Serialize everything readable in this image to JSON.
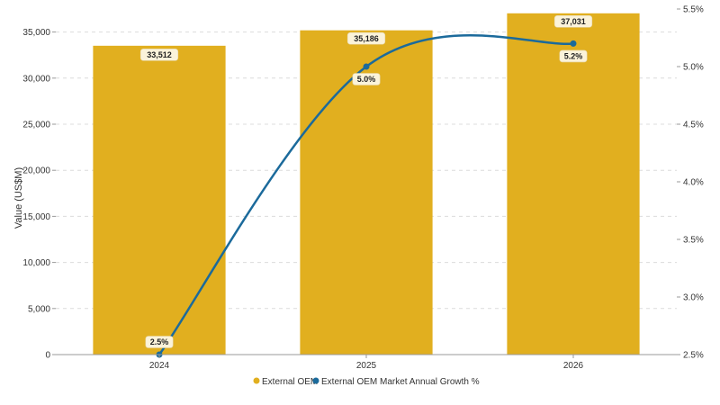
{
  "chart_data": {
    "type": "bar",
    "categories": [
      "2024",
      "2025",
      "2026"
    ],
    "ylabel": "Value (US$M)",
    "ylim": [
      0,
      37500
    ],
    "y_ticks": [
      "0",
      "5,000",
      "10,000",
      "15,000",
      "20,000",
      "25,000",
      "30,000",
      "35,000"
    ],
    "y2lim": [
      2.5,
      5.5
    ],
    "y2_ticks": [
      "2.5%",
      "3.0%",
      "3.5%",
      "4.0%",
      "4.5%",
      "5.0%",
      "5.5%"
    ],
    "grid": true,
    "legend_position": "bottom",
    "series": [
      {
        "name": "External OEM",
        "type": "bar",
        "axis": "left",
        "color": "#E1AF1F",
        "values": [
          33512,
          35186,
          37031
        ],
        "labels": [
          "33,512",
          "35,186",
          "37,031"
        ]
      },
      {
        "name": "External OEM Market Annual Growth %",
        "type": "line",
        "axis": "right",
        "color": "#1B6A9B",
        "values": [
          2.5,
          5.0,
          5.2
        ],
        "labels": [
          "2.5%",
          "5.0%",
          "5.2%"
        ]
      }
    ]
  }
}
